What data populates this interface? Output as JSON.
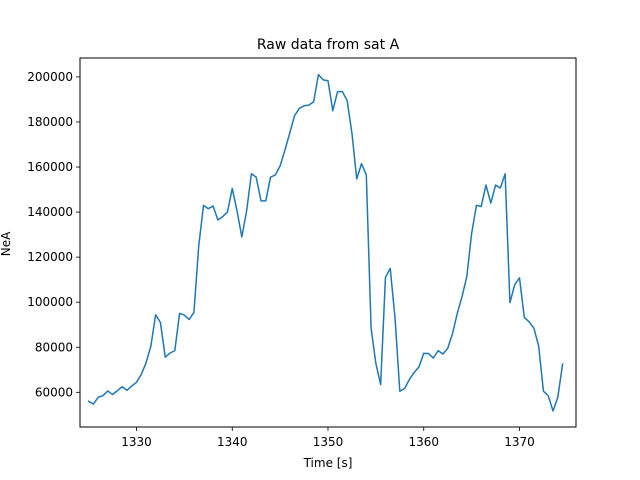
{
  "chart_data": {
    "type": "line",
    "title": "Raw data from sat A",
    "xlabel": "Time [s]",
    "ylabel": "NeA",
    "xlim": [
      1324.1,
      1375.9
    ],
    "ylim": [
      44600,
      208400
    ],
    "xticks": [
      1330,
      1340,
      1350,
      1360,
      1370
    ],
    "yticks": [
      60000,
      80000,
      100000,
      120000,
      140000,
      160000,
      180000,
      200000
    ],
    "grid": false,
    "legend": "none",
    "line_color": "#1f77b4",
    "series": [
      {
        "x": [
          1325.0,
          1325.5,
          1326.0,
          1326.5,
          1327.0,
          1327.5,
          1328.0,
          1328.5,
          1329.0,
          1329.5,
          1330.0,
          1330.5,
          1331.0,
          1331.5,
          1332.0,
          1332.5,
          1333.0,
          1333.5,
          1334.0,
          1334.5,
          1335.0,
          1335.5,
          1336.0,
          1336.5,
          1337.0,
          1337.5,
          1338.0,
          1338.5,
          1339.0,
          1339.5,
          1340.0,
          1340.5,
          1341.0,
          1341.5,
          1342.0,
          1342.5,
          1343.0,
          1343.5,
          1344.0,
          1344.5,
          1345.0,
          1345.5,
          1346.0,
          1346.5,
          1347.0,
          1347.5,
          1348.0,
          1348.5,
          1349.0,
          1349.5,
          1350.0,
          1350.5,
          1351.0,
          1351.5,
          1352.0,
          1352.5,
          1353.0,
          1353.5,
          1354.0,
          1354.5,
          1355.0,
          1355.5,
          1356.0,
          1356.5,
          1357.0,
          1357.5,
          1358.0,
          1358.5,
          1359.0,
          1359.5,
          1360.0,
          1360.5,
          1361.0,
          1361.5,
          1362.0,
          1362.5,
          1363.0,
          1363.5,
          1364.0,
          1364.5,
          1365.0,
          1365.5,
          1366.0,
          1366.5,
          1367.0,
          1367.5,
          1368.0,
          1368.5,
          1369.0,
          1369.5,
          1370.0,
          1370.5,
          1371.0,
          1371.5,
          1372.0,
          1372.5,
          1373.0,
          1373.5,
          1374.0,
          1374.5
        ],
        "y": [
          56000,
          54800,
          57800,
          58500,
          60600,
          59000,
          60700,
          62500,
          60900,
          62800,
          64400,
          68000,
          73100,
          80500,
          94400,
          91000,
          75600,
          77400,
          78500,
          95000,
          94300,
          92300,
          95500,
          125000,
          143000,
          141500,
          142700,
          136500,
          138000,
          140000,
          150500,
          140500,
          129000,
          140500,
          157000,
          155500,
          145000,
          145000,
          155500,
          156500,
          160500,
          167500,
          175000,
          182700,
          186000,
          187200,
          187500,
          189000,
          201000,
          198700,
          198300,
          185000,
          193500,
          193500,
          189500,
          175000,
          154700,
          161500,
          156500,
          88500,
          72800,
          63500,
          111000,
          115000,
          93000,
          60500,
          61700,
          65700,
          68800,
          71300,
          77300,
          77200,
          75200,
          78500,
          77000,
          79500,
          86000,
          95000,
          102500,
          111500,
          130500,
          143000,
          142500,
          152000,
          144000,
          152000,
          150700,
          157000,
          99800,
          107800,
          110800,
          93300,
          91300,
          88500,
          80500,
          60500,
          58500,
          51700,
          57800,
          72500
        ]
      }
    ]
  }
}
